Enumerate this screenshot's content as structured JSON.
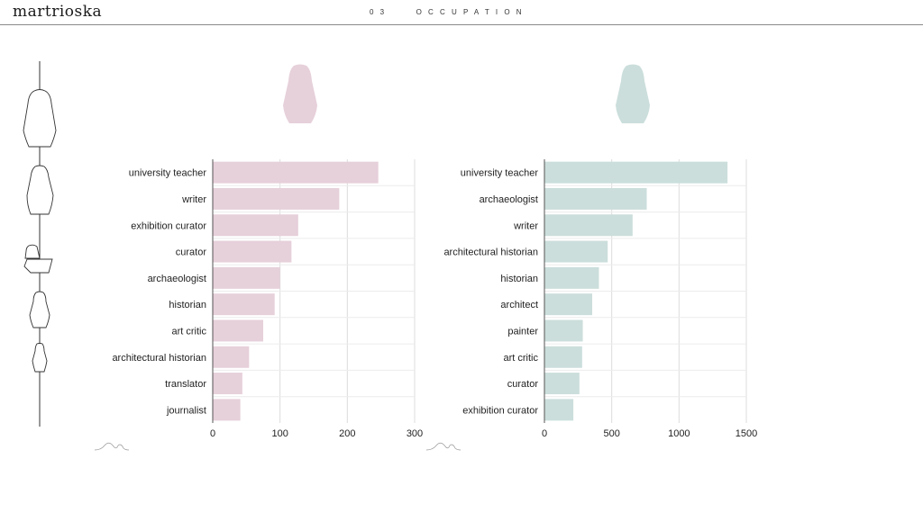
{
  "app": {
    "logo": "martrioska"
  },
  "header": {
    "section_number": "03",
    "section_title": "OCCUPATION"
  },
  "colors": {
    "left_series": "#e6d0da",
    "right_series": "#cbdedb",
    "grid": "#dcdcdc",
    "axis": "#555555"
  },
  "chart_data": [
    {
      "type": "bar",
      "orientation": "horizontal",
      "color": "#e6d0da",
      "categories": [
        "university teacher",
        "writer",
        "exhibition curator",
        "curator",
        "archaeologist",
        "historian",
        "art critic",
        "architectural historian",
        "translator",
        "journalist"
      ],
      "values": [
        246,
        188,
        127,
        117,
        100,
        92,
        75,
        54,
        44,
        41
      ],
      "xlim": [
        0,
        300
      ],
      "xticks": [
        0,
        100,
        200,
        300
      ],
      "grid": true
    },
    {
      "type": "bar",
      "orientation": "horizontal",
      "color": "#cbdedb",
      "categories": [
        "university teacher",
        "archaeologist",
        "writer",
        "architectural historian",
        "historian",
        "architect",
        "painter",
        "art critic",
        "curator",
        "exhibition curator"
      ],
      "values": [
        1360,
        760,
        655,
        470,
        405,
        355,
        285,
        280,
        260,
        215
      ],
      "xlim": [
        0,
        1500
      ],
      "xticks": [
        0,
        500,
        1000,
        1500
      ],
      "grid": true
    }
  ]
}
